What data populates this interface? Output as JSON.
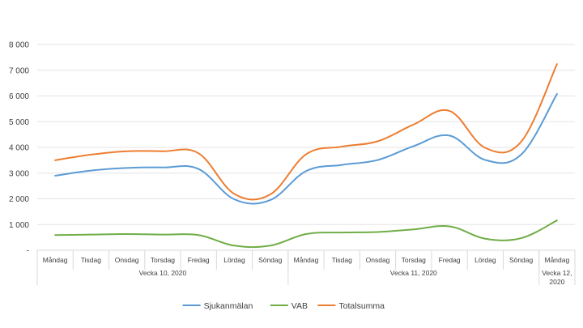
{
  "chart_data": {
    "type": "line",
    "title": "",
    "xlabel": "",
    "ylabel": "",
    "ylim": [
      0,
      8000
    ],
    "yticks": [
      0,
      1000,
      2000,
      3000,
      4000,
      5000,
      6000,
      7000,
      8000
    ],
    "ytick_labels": [
      "-",
      "1 000",
      "2 000",
      "3 000",
      "4 000",
      "5 000",
      "6 000",
      "7 000",
      "8 000"
    ],
    "grid": true,
    "legend_position": "bottom",
    "categories": [
      "Måndag",
      "Tisdag",
      "Onsdag",
      "Torsdag",
      "Fredag",
      "Lördag",
      "Söndag",
      "Måndag",
      "Tisdag",
      "Onsdag",
      "Torsdag",
      "Fredag",
      "Lördag",
      "Söndag",
      "Måndag"
    ],
    "groups": [
      {
        "label": "Vecka 10, 2020",
        "span": 7
      },
      {
        "label": "Vecka 11, 2020",
        "span": 7
      },
      {
        "label": "Vecka 12, 2020",
        "span": 1
      }
    ],
    "series": [
      {
        "name": "Sjukanmälan",
        "color": "#5b9bd5",
        "values": [
          2900,
          3100,
          3200,
          3220,
          3160,
          1980,
          1950,
          3080,
          3320,
          3510,
          4050,
          4460,
          3510,
          3720,
          6080
        ]
      },
      {
        "name": "VAB",
        "color": "#70ad47",
        "values": [
          590,
          610,
          630,
          610,
          590,
          180,
          180,
          630,
          690,
          710,
          810,
          930,
          450,
          470,
          1160
        ]
      },
      {
        "name": "Totalsumma",
        "color": "#ed7d31",
        "values": [
          3500,
          3720,
          3850,
          3850,
          3770,
          2190,
          2170,
          3730,
          4030,
          4240,
          4890,
          5420,
          3980,
          4220,
          7240
        ]
      }
    ]
  }
}
